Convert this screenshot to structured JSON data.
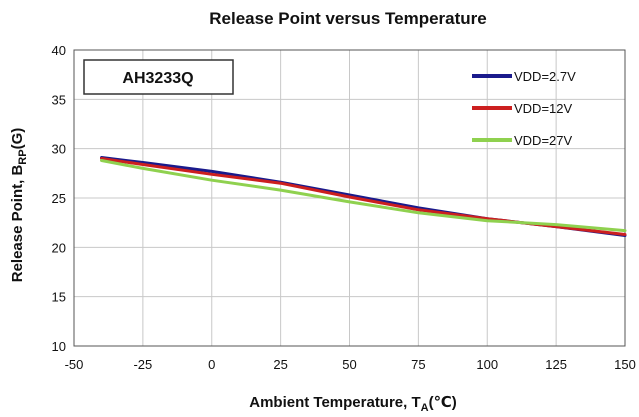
{
  "chart_data": {
    "type": "line",
    "title": "Release Point  versus Temperature",
    "xlabel": {
      "main": "Ambient  Temperature, T",
      "sub": "A",
      "unit": "(℃)"
    },
    "ylabel": {
      "main": "Release Point, B",
      "sub": "RP",
      "unit": "(G)"
    },
    "annotation": "AH3233Q",
    "xlim": [
      -50,
      150
    ],
    "ylim": [
      10,
      40
    ],
    "xticks": [
      -50,
      -25,
      0,
      25,
      50,
      75,
      100,
      125,
      150
    ],
    "yticks": [
      10,
      15,
      20,
      25,
      30,
      35,
      40
    ],
    "grid": true,
    "legend_position": "top-right",
    "series": [
      {
        "name": "VDD=2.7V",
        "color": "#1a1a8c",
        "x": [
          -40,
          -25,
          0,
          25,
          50,
          75,
          100,
          125,
          150
        ],
        "y": [
          29.1,
          28.6,
          27.7,
          26.6,
          25.3,
          24.0,
          22.9,
          22.1,
          21.2
        ]
      },
      {
        "name": "VDD=12V",
        "color": "#cc1f1f",
        "x": [
          -40,
          -25,
          0,
          25,
          50,
          75,
          100,
          125,
          150
        ],
        "y": [
          29.0,
          28.4,
          27.4,
          26.5,
          25.1,
          23.8,
          22.9,
          22.1,
          21.3
        ]
      },
      {
        "name": "VDD=27V",
        "color": "#8fd14f",
        "x": [
          -40,
          -25,
          0,
          25,
          50,
          75,
          100,
          125,
          150
        ],
        "y": [
          28.8,
          28.0,
          26.8,
          25.8,
          24.6,
          23.5,
          22.7,
          22.3,
          21.7
        ]
      }
    ]
  }
}
